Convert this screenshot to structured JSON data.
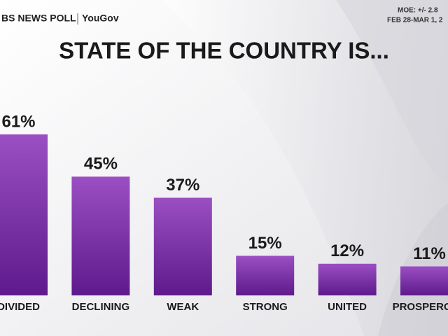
{
  "chart_data": {
    "type": "bar",
    "title": "STATE OF THE COUNTRY IS...",
    "source": "BS NEWS POLL",
    "partner": "YouGov",
    "moe": "MOE: +/- 2.8",
    "dates": "FEB 28-MAR 1, 2",
    "categories": [
      "DIVIDED",
      "DECLINING",
      "WEAK",
      "STRONG",
      "UNITED",
      "PROSPEROUS"
    ],
    "values": [
      61,
      45,
      37,
      15,
      12,
      11
    ],
    "value_labels": [
      "61%",
      "45%",
      "37%",
      "15%",
      "12%",
      "11%"
    ],
    "color": "#7b2fa6"
  }
}
